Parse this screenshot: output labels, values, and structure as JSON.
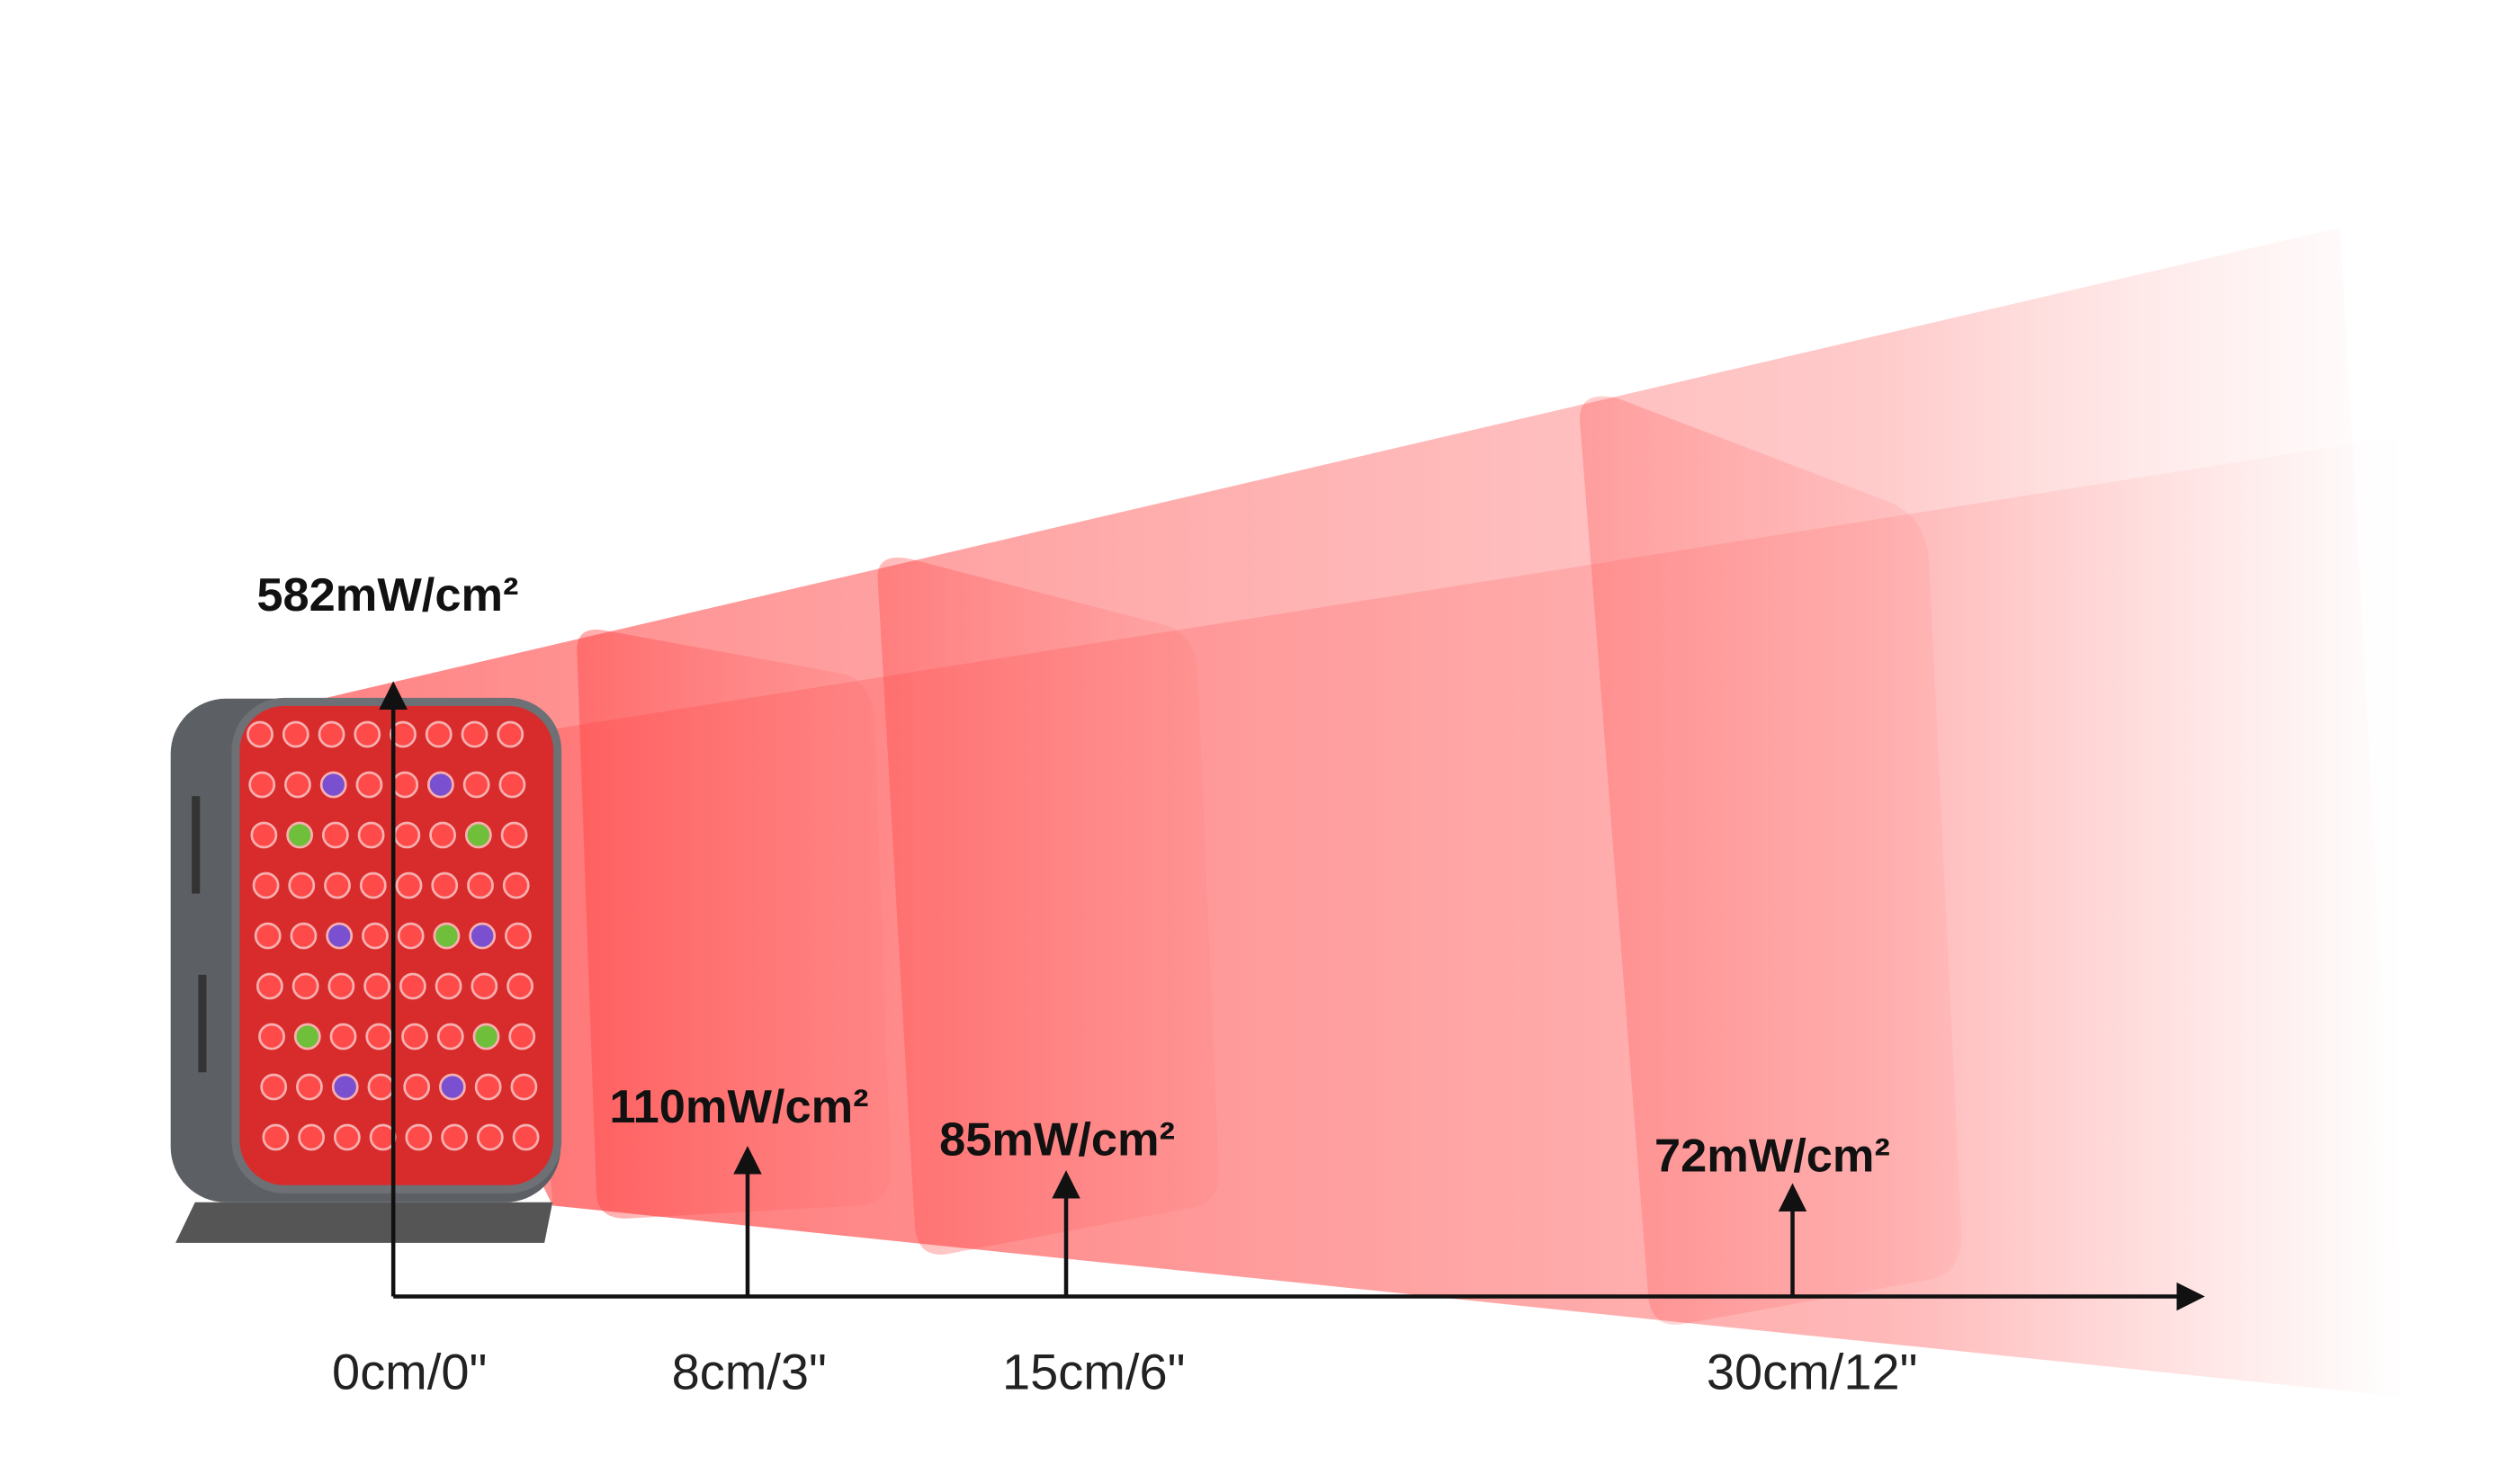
{
  "measurements": [
    {
      "distance": "0cm/0\"",
      "irradiance": "582mW/cm²"
    },
    {
      "distance": "8cm/3\"",
      "irradiance": "110mW/cm²"
    },
    {
      "distance": "15cm/6\"",
      "irradiance": "85mW/cm²"
    },
    {
      "distance": "30cm/12\"",
      "irradiance": "72mW/cm²"
    }
  ]
}
